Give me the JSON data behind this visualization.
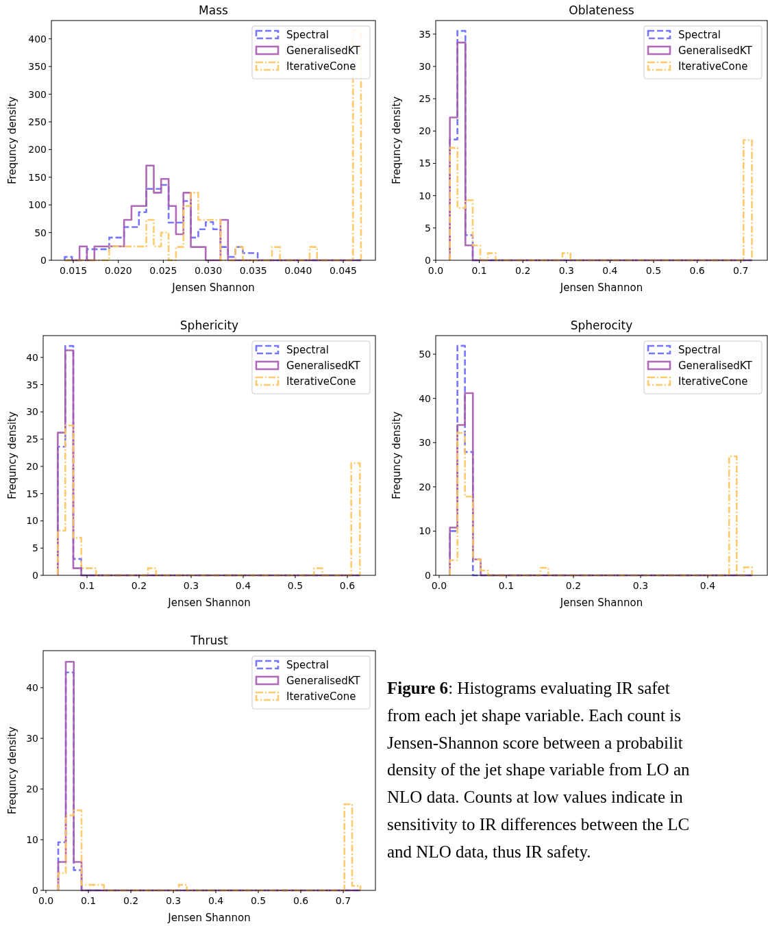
{
  "chart_data": [
    {
      "type": "histogram",
      "title": "Mass",
      "xlabel": "Jensen Shannon",
      "ylabel": "Frequncy density",
      "legend": "top right",
      "xlim": [
        0.01256,
        0.04858
      ],
      "ylim": [
        0,
        433
      ],
      "xticks": [
        {
          "value": 0.015,
          "label": "0.015"
        },
        {
          "value": 0.02,
          "label": "0.020"
        },
        {
          "value": 0.025,
          "label": "0.025"
        },
        {
          "value": 0.03,
          "label": "0.030"
        },
        {
          "value": 0.035,
          "label": "0.035"
        },
        {
          "value": 0.04,
          "label": "0.040"
        },
        {
          "value": 0.045,
          "label": "0.045"
        }
      ],
      "yticks": [
        0,
        50,
        100,
        150,
        200,
        250,
        300,
        350,
        400
      ],
      "bins": [
        0.01404,
        0.01486,
        0.01569,
        0.01651,
        0.01734,
        0.01816,
        0.01899,
        0.01981,
        0.02064,
        0.02146,
        0.02229,
        0.02311,
        0.02394,
        0.02476,
        0.02559,
        0.02641,
        0.02724,
        0.02806,
        0.02889,
        0.02971,
        0.03054,
        0.03136,
        0.03219,
        0.03301,
        0.03384,
        0.03466,
        0.03549,
        0.03708,
        0.03797,
        0.04127,
        0.04208,
        0.04609,
        0.04698
      ],
      "series": [
        {
          "name": "Spectral",
          "color": "#6666ff",
          "line_style": "dashed",
          "values": [
            6,
            0,
            0,
            20,
            20,
            20,
            41,
            41,
            60,
            60,
            87,
            129,
            129,
            136,
            68,
            68,
            107,
            41,
            56,
            69,
            56,
            24,
            6,
            24,
            13,
            13,
            0,
            0,
            0,
            0,
            0,
            0
          ]
        },
        {
          "name": "GeneralisedKT",
          "color": "#a65aaf",
          "line_style": "solid",
          "values": [
            0,
            0,
            25,
            0,
            25,
            25,
            25,
            25,
            73,
            98,
            98,
            171,
            122,
            147,
            98,
            47,
            122,
            24,
            24,
            0,
            0,
            73,
            0,
            0,
            0,
            0,
            0,
            0,
            0,
            0,
            0,
            0
          ]
        },
        {
          "name": "IterativeCone",
          "color": "#ffc45c",
          "line_style": "dashdot",
          "values": [
            0,
            0,
            0,
            0,
            0,
            0,
            25,
            25,
            25,
            25,
            25,
            73,
            25,
            50,
            0,
            24,
            98,
            122,
            73,
            73,
            73,
            0,
            0,
            24,
            0,
            0,
            0,
            24,
            0,
            24,
            0,
            415
          ]
        }
      ]
    },
    {
      "type": "histogram",
      "title": "Oblateness",
      "xlabel": "Jensen Shannon",
      "ylabel": "Frequncy density",
      "legend": "top right",
      "xlim": [
        0,
        0.761
      ],
      "ylim": [
        0,
        37.1
      ],
      "xticks": [
        {
          "value": 0,
          "label": "0.0"
        },
        0.1,
        0.2,
        0.3,
        0.4,
        0.5,
        0.6,
        0.7
      ],
      "yticks": [
        0,
        5,
        10,
        15,
        20,
        25,
        30,
        35
      ],
      "bins": [
        0.0325,
        0.0498,
        0.0681,
        0.0849,
        0.1022,
        0.1195,
        0.1373,
        0.2908,
        0.3092,
        0.7064,
        0.7257
      ],
      "series": [
        {
          "name": "Spectral",
          "color": "#6666ff",
          "line_style": "dashed",
          "values": [
            18.7,
            35.5,
            3.9,
            0,
            0,
            0,
            0,
            0,
            0,
            0
          ]
        },
        {
          "name": "GeneralisedKT",
          "color": "#a65aaf",
          "line_style": "solid",
          "values": [
            22.1,
            33.7,
            2.3,
            0,
            0,
            0,
            0,
            0,
            0,
            0
          ]
        },
        {
          "name": "IterativeCone",
          "color": "#ffc45c",
          "line_style": "dashdot",
          "values": [
            17.4,
            8.1,
            9.3,
            2.3,
            0,
            1.1,
            0,
            1.1,
            0,
            18.6
          ]
        }
      ]
    },
    {
      "type": "histogram",
      "title": "Sphericity",
      "xlabel": "Jensen Shannon",
      "ylabel": "Frequncy density",
      "legend": "top right",
      "xlim": [
        0.0158,
        0.654
      ],
      "ylim": [
        0,
        44
      ],
      "xticks": [
        0.1,
        0.2,
        0.3,
        0.4,
        0.5,
        0.6
      ],
      "yticks": [
        0,
        5,
        10,
        15,
        20,
        25,
        30,
        35,
        40
      ],
      "bins": [
        0.0439,
        0.0583,
        0.0737,
        0.089,
        0.1175,
        0.2171,
        0.2325,
        0.536,
        0.5518,
        0.6075,
        0.6241
      ],
      "series": [
        {
          "name": "Spectral",
          "color": "#6666ff",
          "line_style": "dashed",
          "values": [
            23.6,
            42.1,
            3.0,
            0,
            0,
            0,
            0,
            0,
            0,
            0
          ]
        },
        {
          "name": "GeneralisedKT",
          "color": "#a65aaf",
          "line_style": "solid",
          "values": [
            26.2,
            41.3,
            1.3,
            0,
            0,
            0,
            0,
            0,
            0,
            0
          ]
        },
        {
          "name": "IterativeCone",
          "color": "#ffc45c",
          "line_style": "dashdot",
          "values": [
            8.2,
            27.5,
            6.9,
            1.3,
            0,
            1.3,
            0,
            1.3,
            0,
            20.6
          ]
        }
      ]
    },
    {
      "type": "histogram",
      "title": "Spherocity",
      "xlabel": "Jensen Shannon",
      "ylabel": "Frequncy density",
      "legend": "top right",
      "xlim": [
        -0.0051,
        0.4888
      ],
      "ylim": [
        0,
        54.2
      ],
      "xticks": [
        {
          "value": 0,
          "label": "0.0"
        },
        0.1,
        0.2,
        0.3,
        0.4
      ],
      "yticks": [
        0,
        10,
        20,
        30,
        40,
        50
      ],
      "bins": [
        0.016,
        0.0272,
        0.0384,
        0.0503,
        0.0619,
        0.0731,
        0.1507,
        0.1626,
        0.432,
        0.4432,
        0.4541,
        0.466
      ],
      "series": [
        {
          "name": "Spectral",
          "color": "#6666ff",
          "line_style": "dashed",
          "values": [
            10.0,
            51.9,
            27.9,
            0,
            0,
            0,
            0,
            0,
            0,
            0,
            0
          ]
        },
        {
          "name": "GeneralisedKT",
          "color": "#a65aaf",
          "line_style": "solid",
          "values": [
            10.8,
            34.0,
            41.2,
            3.6,
            0,
            0,
            0,
            0,
            0,
            0,
            0
          ]
        },
        {
          "name": "IterativeCone",
          "color": "#ffc45c",
          "line_style": "dashdot",
          "values": [
            3.4,
            32.2,
            17.8,
            3.6,
            1.1,
            0,
            1.7,
            0,
            26.9,
            0,
            1.8
          ]
        }
      ]
    },
    {
      "type": "histogram",
      "title": "Thrust",
      "xlabel": "Jensen Shannon",
      "ylabel": "Frequncy density",
      "legend": "top right",
      "xlim": [
        -0.0065,
        0.7758
      ],
      "ylim": [
        0,
        47.3
      ],
      "xticks": [
        {
          "value": 0,
          "label": "0.0"
        },
        0.1,
        0.2,
        0.3,
        0.4,
        0.5,
        0.6,
        0.7
      ],
      "yticks": [
        0,
        10,
        20,
        30,
        40
      ],
      "bins": [
        0.029,
        0.0468,
        0.0656,
        0.0839,
        0.1366,
        0.3129,
        0.3317,
        0.7027,
        0.721,
        0.7403
      ],
      "series": [
        {
          "name": "Spectral",
          "color": "#6666ff",
          "line_style": "dashed",
          "values": [
            9.5,
            43.0,
            4.0,
            0,
            0,
            0,
            0,
            0,
            0
          ]
        },
        {
          "name": "GeneralisedKT",
          "color": "#a65aaf",
          "line_style": "solid",
          "values": [
            5.6,
            45.1,
            5.6,
            0,
            0,
            0,
            0,
            0,
            0
          ]
        },
        {
          "name": "IterativeCone",
          "color": "#ffc45c",
          "line_style": "dashdot",
          "values": [
            3.4,
            14.8,
            15.8,
            1.1,
            0,
            1.1,
            0,
            17.0,
            0.9
          ]
        }
      ]
    },
    {
      "type": "other",
      "annotations": [
        "Figure 6: Histograms evaluating IR safet",
        "from each jet shape variable. Each count is",
        "Jensen-Shannon score between a probabilit",
        "density of the jet shape variable from LO an",
        "NLO data. Counts at low values indicate in",
        "sensitivity to IR differences between the LC",
        "and NLO data, thus IR safety."
      ]
    }
  ]
}
